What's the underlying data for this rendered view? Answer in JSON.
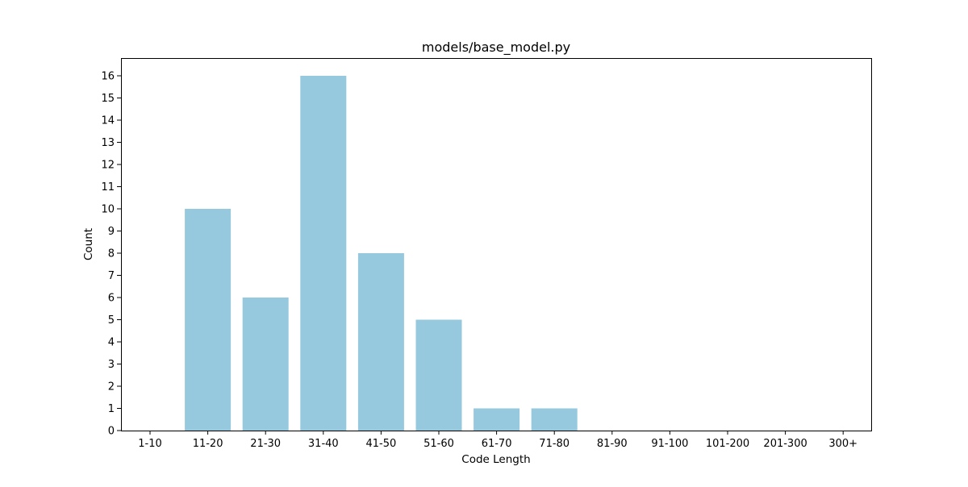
{
  "chart_data": {
    "type": "bar",
    "title": "models/base_model.py",
    "xlabel": "Code Length",
    "ylabel": "Count",
    "categories": [
      "1-10",
      "11-20",
      "21-30",
      "31-40",
      "41-50",
      "51-60",
      "61-70",
      "71-80",
      "81-90",
      "91-100",
      "101-200",
      "201-300",
      "300+"
    ],
    "values": [
      0,
      10,
      6,
      16,
      8,
      5,
      1,
      1,
      0,
      0,
      0,
      0,
      0
    ],
    "yticks": [
      "0",
      "1",
      "2",
      "3",
      "4",
      "5",
      "6",
      "7",
      "8",
      "9",
      "10",
      "11",
      "12",
      "13",
      "14",
      "15",
      "16"
    ],
    "ylim": [
      0,
      16.8
    ],
    "grid": false,
    "legend": "none",
    "bar_color": "#96c9dd"
  }
}
